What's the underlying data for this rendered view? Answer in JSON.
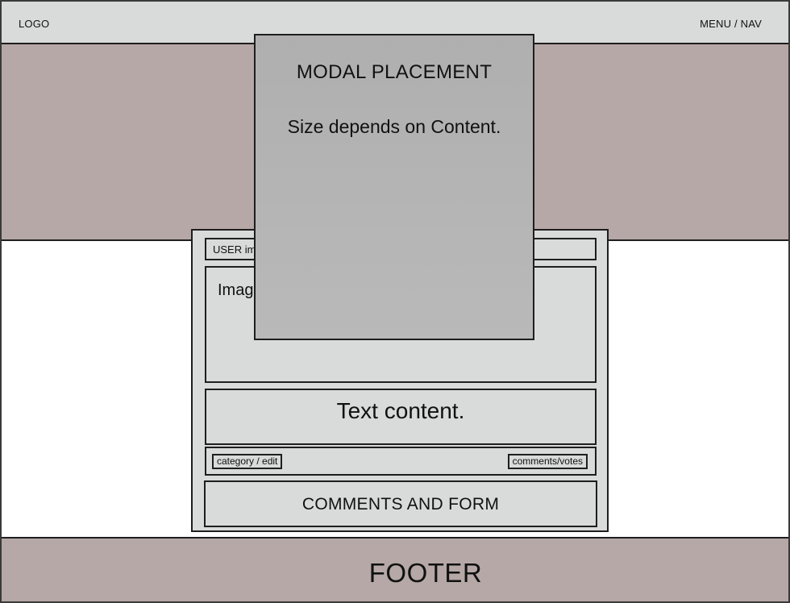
{
  "header": {
    "logo": "LOGO",
    "menu": "MENU / NAV"
  },
  "post": {
    "user_label": "USER image/info",
    "image_label": "Image",
    "text_label": "Text content.",
    "category_label": "category / edit",
    "comments_votes_label": "comments/votes",
    "comments_form_label": "COMMENTS AND FORM"
  },
  "modal": {
    "title": "MODAL PLACEMENT",
    "subtitle": "Size depends on Content."
  },
  "footer": {
    "label": "FOOTER"
  },
  "colors": {
    "header_bg": "#d9dada",
    "hero_bg": "#b5a8a6",
    "footer_bg": "#b5a8a6",
    "card_bg": "#d9dada",
    "modal_bg": "#b3b3b3",
    "border": "#1e1e1e"
  }
}
